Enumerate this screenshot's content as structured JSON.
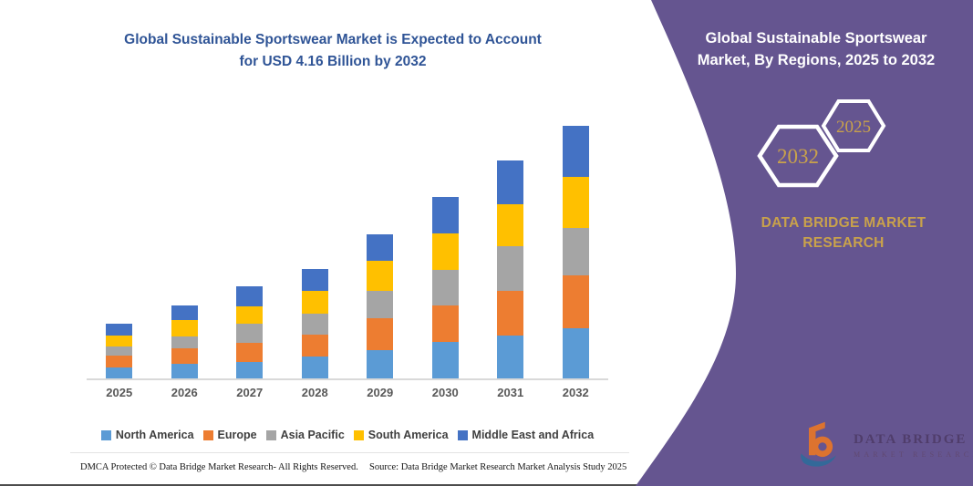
{
  "left_panel": {
    "title_line1": "Global Sustainable Sportswear Market is Expected to Account",
    "title_line2": "for USD 4.16 Billion by 2032",
    "footer_left": "DMCA Protected © Data Bridge Market Research-  All Rights Reserved.",
    "footer_right": "Source: Data Bridge Market Research  Market Analysis Study 2025"
  },
  "right_panel": {
    "title_line1": "Global Sustainable Sportswear",
    "title_line2": "Market, By Regions, 2025 to 2032",
    "hexagons": [
      {
        "label": "2032"
      },
      {
        "label": "2025"
      }
    ],
    "brand_line1": "DATA BRIDGE MARKET",
    "brand_line2": "RESEARCH",
    "logo": {
      "line1": "DATA BRIDGE",
      "line2": "MARKET RESEARCH"
    }
  },
  "colors": {
    "purple_panel": "#655590",
    "title_navy": "#2F5496",
    "gold": "#C9A24B",
    "axis_line": "#D9D9D9",
    "xlabel_gray": "#595959",
    "legend_text": "#3F3F3F",
    "logo_orange": "#E87627",
    "logo_blue": "#2F6B9A"
  },
  "chart_data": {
    "type": "bar",
    "stacked": true,
    "title": "Global Sustainable Sportswear Market is Expected to Account for USD 4.16 Billion by 2032",
    "xlabel": "",
    "ylabel": "",
    "unit": "USD Billion (estimated from bar heights; 2032 total stated as 4.16)",
    "grid": false,
    "legend_position": "bottom",
    "ylim": [
      0,
      4.4
    ],
    "categories": [
      "2025",
      "2026",
      "2027",
      "2028",
      "2029",
      "2030",
      "2031",
      "2032"
    ],
    "series": [
      {
        "name": "North America",
        "color": "#5B9BD5",
        "values": [
          0.18,
          0.24,
          0.27,
          0.36,
          0.47,
          0.6,
          0.7,
          0.83
        ]
      },
      {
        "name": "Europe",
        "color": "#ED7D31",
        "values": [
          0.2,
          0.25,
          0.31,
          0.36,
          0.52,
          0.6,
          0.75,
          0.86
        ]
      },
      {
        "name": "Asia Pacific",
        "color": "#A5A5A5",
        "values": [
          0.14,
          0.2,
          0.32,
          0.35,
          0.45,
          0.59,
          0.73,
          0.79
        ]
      },
      {
        "name": "South America",
        "color": "#FFC000",
        "values": [
          0.18,
          0.27,
          0.29,
          0.37,
          0.5,
          0.59,
          0.69,
          0.84
        ]
      },
      {
        "name": "Middle East and Africa",
        "color": "#4472C4",
        "values": [
          0.2,
          0.25,
          0.33,
          0.36,
          0.44,
          0.6,
          0.72,
          0.84
        ]
      }
    ],
    "totals": [
      0.9,
      1.21,
      1.52,
      1.8,
      2.38,
      2.98,
      3.59,
      4.16
    ]
  }
}
